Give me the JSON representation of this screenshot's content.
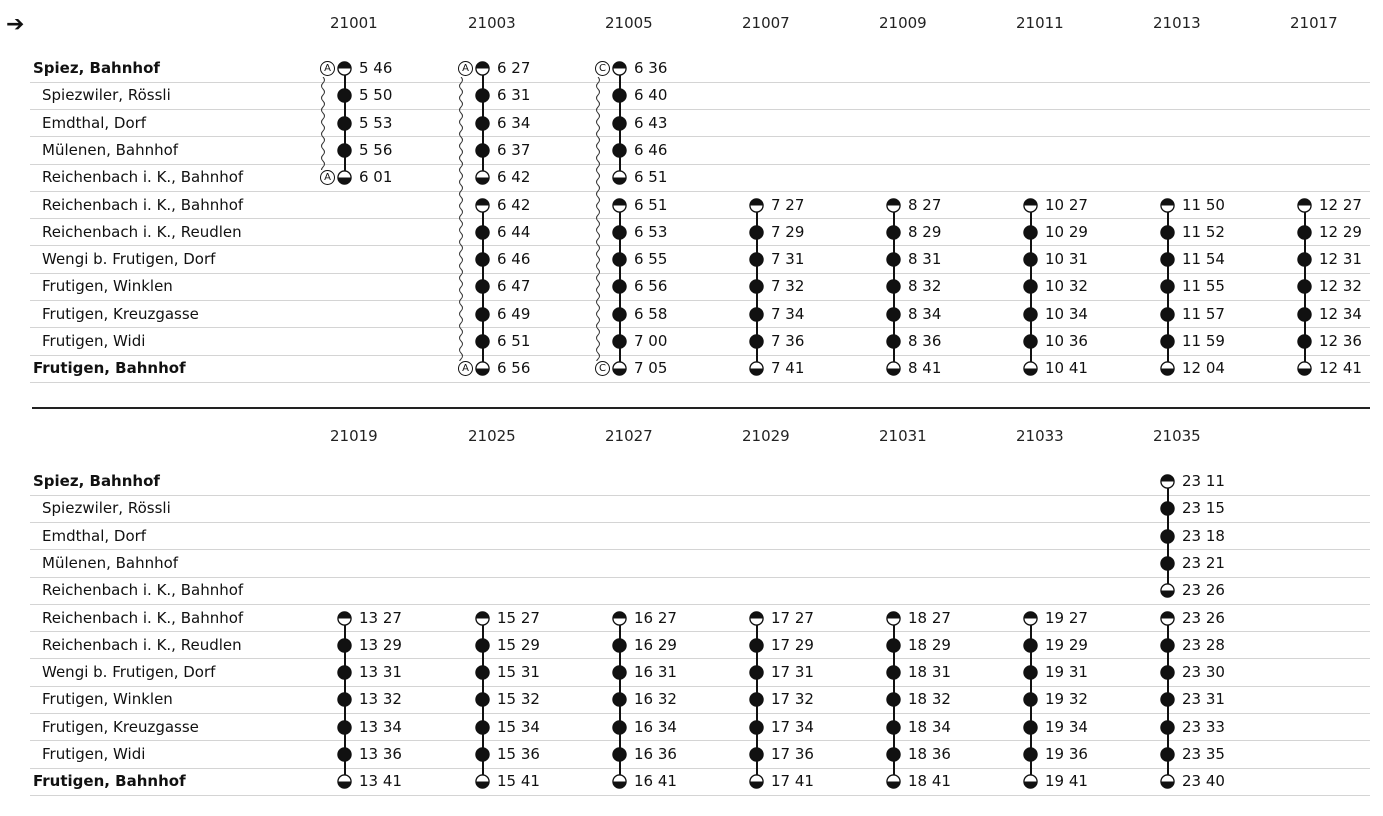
{
  "direction_icon": "right-arrow-icon",
  "stations": [
    {
      "name": "Spiez, Bahnhof",
      "bold": true
    },
    {
      "name": "Spiezwiler, Rössli",
      "bold": false
    },
    {
      "name": "Emdthal, Dorf",
      "bold": false
    },
    {
      "name": "Mülenen, Bahnhof",
      "bold": false
    },
    {
      "name": "Reichenbach i. K., Bahnhof",
      "bold": false
    },
    {
      "name": "Reichenbach i. K., Bahnhof",
      "bold": false
    },
    {
      "name": "Reichenbach i. K., Reudlen",
      "bold": false
    },
    {
      "name": "Wengi b. Frutigen, Dorf",
      "bold": false
    },
    {
      "name": "Frutigen, Winklen",
      "bold": false
    },
    {
      "name": "Frutigen, Kreuzgasse",
      "bold": false
    },
    {
      "name": "Frutigen, Widi",
      "bold": false
    },
    {
      "name": "Frutigen, Bahnhof",
      "bold": true
    }
  ],
  "tables": [
    {
      "trains": [
        {
          "number": "21001",
          "times": [
            "5 46",
            "5 50",
            "5 53",
            "5 56",
            "6 01",
            null,
            null,
            null,
            null,
            null,
            null,
            null
          ],
          "notes": {
            "0": "A",
            "4": "A"
          },
          "wavy": true
        },
        {
          "number": "21003",
          "times": [
            "6 27",
            "6 31",
            "6 34",
            "6 37",
            "6 42",
            "6 42",
            "6 44",
            "6 46",
            "6 47",
            "6 49",
            "6 51",
            "6 56"
          ],
          "notes": {
            "0": "A",
            "11": "A"
          },
          "wavy": true
        },
        {
          "number": "21005",
          "times": [
            "6 36",
            "6 40",
            "6 43",
            "6 46",
            "6 51",
            "6 51",
            "6 53",
            "6 55",
            "6 56",
            "6 58",
            "7 00",
            "7 05"
          ],
          "notes": {
            "0": "C",
            "11": "C"
          },
          "wavy": true
        },
        {
          "number": "21007",
          "times": [
            null,
            null,
            null,
            null,
            null,
            "7 27",
            "7 29",
            "7 31",
            "7 32",
            "7 34",
            "7 36",
            "7 41"
          ],
          "notes": {},
          "wavy": false
        },
        {
          "number": "21009",
          "times": [
            null,
            null,
            null,
            null,
            null,
            "8 27",
            "8 29",
            "8 31",
            "8 32",
            "8 34",
            "8 36",
            "8 41"
          ],
          "notes": {},
          "wavy": false
        },
        {
          "number": "21011",
          "times": [
            null,
            null,
            null,
            null,
            null,
            "10 27",
            "10 29",
            "10 31",
            "10 32",
            "10 34",
            "10 36",
            "10 41"
          ],
          "notes": {},
          "wavy": false
        },
        {
          "number": "21013",
          "times": [
            null,
            null,
            null,
            null,
            null,
            "11 50",
            "11 52",
            "11 54",
            "11 55",
            "11 57",
            "11 59",
            "12 04"
          ],
          "notes": {},
          "wavy": false
        },
        {
          "number": "21017",
          "times": [
            null,
            null,
            null,
            null,
            null,
            "12 27",
            "12 29",
            "12 31",
            "12 32",
            "12 34",
            "12 36",
            "12 41"
          ],
          "notes": {},
          "wavy": false
        }
      ]
    },
    {
      "trains": [
        {
          "number": "21019",
          "times": [
            null,
            null,
            null,
            null,
            null,
            "13 27",
            "13 29",
            "13 31",
            "13 32",
            "13 34",
            "13 36",
            "13 41"
          ],
          "notes": {},
          "wavy": false
        },
        {
          "number": "21025",
          "times": [
            null,
            null,
            null,
            null,
            null,
            "15 27",
            "15 29",
            "15 31",
            "15 32",
            "15 34",
            "15 36",
            "15 41"
          ],
          "notes": {},
          "wavy": false
        },
        {
          "number": "21027",
          "times": [
            null,
            null,
            null,
            null,
            null,
            "16 27",
            "16 29",
            "16 31",
            "16 32",
            "16 34",
            "16 36",
            "16 41"
          ],
          "notes": {},
          "wavy": false
        },
        {
          "number": "21029",
          "times": [
            null,
            null,
            null,
            null,
            null,
            "17 27",
            "17 29",
            "17 31",
            "17 32",
            "17 34",
            "17 36",
            "17 41"
          ],
          "notes": {},
          "wavy": false
        },
        {
          "number": "21031",
          "times": [
            null,
            null,
            null,
            null,
            null,
            "18 27",
            "18 29",
            "18 31",
            "18 32",
            "18 34",
            "18 36",
            "18 41"
          ],
          "notes": {},
          "wavy": false
        },
        {
          "number": "21033",
          "times": [
            null,
            null,
            null,
            null,
            null,
            "19 27",
            "19 29",
            "19 31",
            "19 32",
            "19 34",
            "19 36",
            "19 41"
          ],
          "notes": {},
          "wavy": false
        },
        {
          "number": "21035",
          "times": [
            "23 11",
            "23 15",
            "23 18",
            "23 21",
            "23 26",
            "23 26",
            "23 28",
            "23 30",
            "23 31",
            "23 33",
            "23 35",
            "23 40"
          ],
          "notes": {},
          "wavy": false
        }
      ]
    }
  ]
}
